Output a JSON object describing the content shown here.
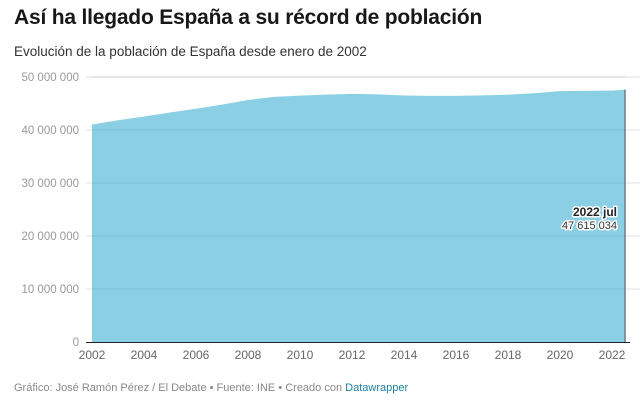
{
  "header": {
    "title": "Así ha llegado España a su récord de población",
    "subtitle": "Evolución de la población de España desde enero de 2002"
  },
  "chart_data": {
    "type": "area",
    "title": "Así ha llegado España a su récord de población",
    "subtitle": "Evolución de la población de España desde enero de 2002",
    "xlabel": "",
    "ylabel": "",
    "xlim": [
      2002,
      2022.5
    ],
    "ylim": [
      0,
      50000000
    ],
    "grid": true,
    "legend": "none",
    "fill_color": "#8acfe4",
    "x": [
      2002,
      2003,
      2004,
      2005,
      2006,
      2007,
      2008,
      2009,
      2010,
      2011,
      2012,
      2013,
      2014,
      2015,
      2016,
      2017,
      2018,
      2019,
      2020,
      2021,
      2022,
      2022.5
    ],
    "values": [
      41035271,
      41827836,
      42547454,
      43296335,
      44009969,
      44784659,
      45668938,
      46239271,
      46486621,
      46667175,
      46818216,
      46727890,
      46512199,
      46449565,
      46440099,
      46527039,
      46658447,
      46937060,
      47332614,
      47398695,
      47432805,
      47615034
    ],
    "x_ticks": [
      "2002",
      "2004",
      "2006",
      "2008",
      "2010",
      "2012",
      "2014",
      "2016",
      "2018",
      "2020",
      "2022"
    ],
    "x_tick_values": [
      2002,
      2004,
      2006,
      2008,
      2010,
      2012,
      2014,
      2016,
      2018,
      2020,
      2022
    ],
    "y_ticks": [
      "0",
      "10 000 000",
      "20 000 000",
      "30 000 000",
      "40 000 000",
      "50 000 000"
    ],
    "y_tick_values": [
      0,
      10000000,
      20000000,
      30000000,
      40000000,
      50000000
    ],
    "annotation": {
      "label": "2022 jul",
      "value": "47 615 034",
      "x": 2022.5,
      "y": 47615034
    }
  },
  "footer": {
    "credit": "Gráfico: José Ramón Pérez / El Debate • Fuente: INE • Creado con ",
    "link_label": "Datawrapper"
  }
}
